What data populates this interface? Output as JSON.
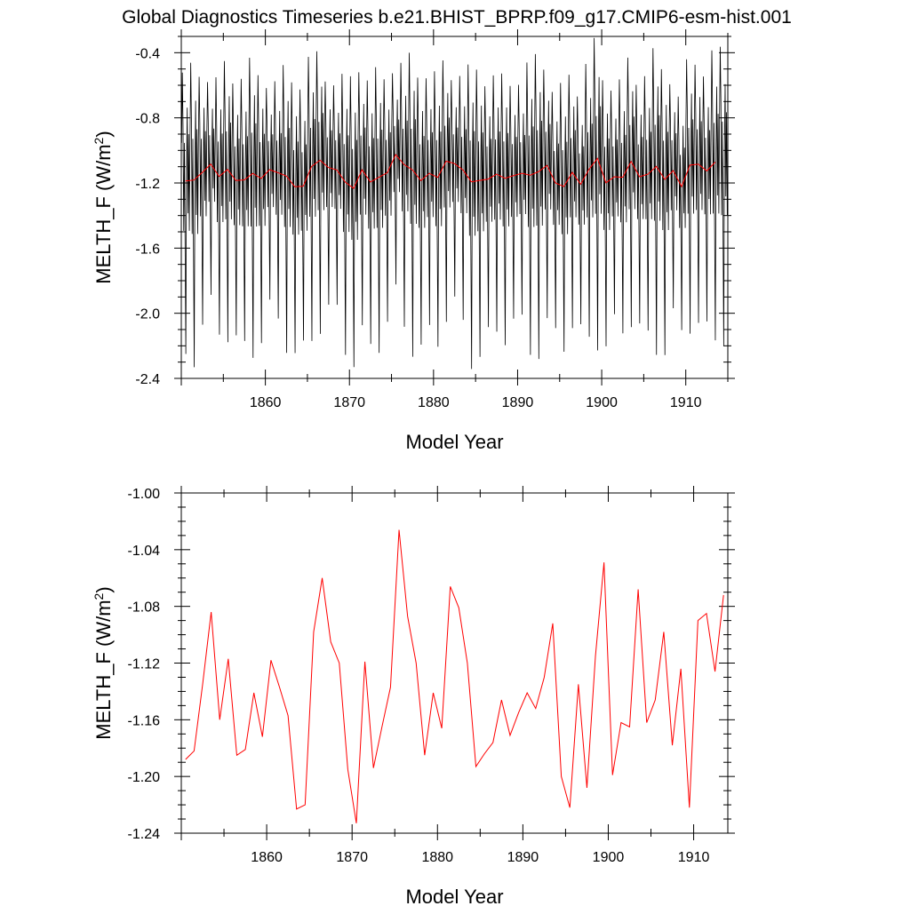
{
  "title": "Global Diagnostics Timeseries b.e21.BHIST_BPRP.f09_g17.CMIP6-esm-hist.001",
  "colors": {
    "monthly": "#000000",
    "annual": "#ff0000"
  },
  "chart_data": [
    {
      "type": "line",
      "panel": "top",
      "xlabel": "Model Year",
      "ylabel": "MELTH_F (W/m",
      "ylabel_sup": "2",
      "ylabel_close": ")",
      "xlim": [
        1850,
        1915
      ],
      "ylim": [
        -2.4,
        -0.3
      ],
      "xticks": [
        1860,
        1870,
        1880,
        1890,
        1900,
        1910
      ],
      "xtick_labels": [
        "1860",
        "1870",
        "1880",
        "1890",
        "1900",
        "1910"
      ],
      "yticks": [
        -2.4,
        -2.0,
        -1.6,
        -1.2,
        -0.8,
        -0.4
      ],
      "ytick_labels": [
        "-2.4",
        "-2.0",
        "-1.6",
        "-1.2",
        "-0.8",
        "-0.4"
      ],
      "grid": false,
      "series": [
        {
          "kind": "monthly",
          "color": "#000000",
          "seasonal_cycle": [
            -0.95,
            -0.55,
            -0.85,
            -1.45,
            -0.95,
            -1.55,
            -2.15,
            -1.1,
            -0.75,
            -1.35,
            -0.9,
            -1.45
          ],
          "x_start": 1850.04,
          "x_step": 0.0833
        },
        {
          "kind": "annual",
          "color": "#ff0000",
          "x": [
            1850.5,
            1851.5,
            1852.5,
            1853.5,
            1854.5,
            1855.5,
            1856.5,
            1857.5,
            1858.5,
            1859.5,
            1860.5,
            1861.5,
            1862.5,
            1863.5,
            1864.5,
            1865.5,
            1866.5,
            1867.5,
            1868.5,
            1869.5,
            1870.5,
            1871.5,
            1872.5,
            1873.5,
            1874.5,
            1875.5,
            1876.5,
            1877.5,
            1878.5,
            1879.5,
            1880.5,
            1881.5,
            1882.5,
            1883.5,
            1884.5,
            1885.5,
            1886.5,
            1887.5,
            1888.5,
            1889.5,
            1890.5,
            1891.5,
            1892.5,
            1893.5,
            1894.5,
            1895.5,
            1896.5,
            1897.5,
            1898.5,
            1899.5,
            1900.5,
            1901.5,
            1902.5,
            1903.5,
            1904.5,
            1905.5,
            1906.5,
            1907.5,
            1908.5,
            1909.5,
            1910.5,
            1911.5,
            1912.5,
            1913.5
          ],
          "values": [
            -1.188,
            -1.182,
            -1.135,
            -1.084,
            -1.16,
            -1.117,
            -1.185,
            -1.181,
            -1.141,
            -1.172,
            -1.118,
            -1.137,
            -1.157,
            -1.223,
            -1.22,
            -1.098,
            -1.06,
            -1.105,
            -1.12,
            -1.195,
            -1.233,
            -1.119,
            -1.194,
            -1.165,
            -1.137,
            -1.026,
            -1.087,
            -1.12,
            -1.185,
            -1.141,
            -1.166,
            -1.066,
            -1.081,
            -1.12,
            -1.193,
            -1.184,
            -1.176,
            -1.146,
            -1.171,
            -1.155,
            -1.141,
            -1.152,
            -1.13,
            -1.092,
            -1.2,
            -1.222,
            -1.135,
            -1.208,
            -1.115,
            -1.049,
            -1.199,
            -1.162,
            -1.165,
            -1.068,
            -1.162,
            -1.146,
            -1.098,
            -1.178,
            -1.124,
            -1.222,
            -1.09,
            -1.085,
            -1.126,
            -1.072
          ]
        }
      ]
    },
    {
      "type": "line",
      "panel": "bottom",
      "xlabel": "Model Year",
      "ylabel": "MELTH_F (W/m",
      "ylabel_sup": "2",
      "ylabel_close": ")",
      "xlim": [
        1850,
        1914
      ],
      "ylim": [
        -1.24,
        -1.0
      ],
      "xticks": [
        1860,
        1870,
        1880,
        1890,
        1900,
        1910
      ],
      "xtick_labels": [
        "1860",
        "1870",
        "1880",
        "1890",
        "1900",
        "1910"
      ],
      "yticks": [
        -1.24,
        -1.2,
        -1.16,
        -1.12,
        -1.08,
        -1.04,
        -1.0
      ],
      "ytick_labels": [
        "-1.24",
        "-1.20",
        "-1.16",
        "-1.12",
        "-1.08",
        "-1.04",
        "-1.00"
      ],
      "grid": false,
      "series": [
        {
          "kind": "annual",
          "color": "#ff0000",
          "x": [
            1850.5,
            1851.5,
            1852.5,
            1853.5,
            1854.5,
            1855.5,
            1856.5,
            1857.5,
            1858.5,
            1859.5,
            1860.5,
            1861.5,
            1862.5,
            1863.5,
            1864.5,
            1865.5,
            1866.5,
            1867.5,
            1868.5,
            1869.5,
            1870.5,
            1871.5,
            1872.5,
            1873.5,
            1874.5,
            1875.5,
            1876.5,
            1877.5,
            1878.5,
            1879.5,
            1880.5,
            1881.5,
            1882.5,
            1883.5,
            1884.5,
            1885.5,
            1886.5,
            1887.5,
            1888.5,
            1889.5,
            1890.5,
            1891.5,
            1892.5,
            1893.5,
            1894.5,
            1895.5,
            1896.5,
            1897.5,
            1898.5,
            1899.5,
            1900.5,
            1901.5,
            1902.5,
            1903.5,
            1904.5,
            1905.5,
            1906.5,
            1907.5,
            1908.5,
            1909.5,
            1910.5,
            1911.5,
            1912.5,
            1913.5
          ],
          "values": [
            -1.188,
            -1.182,
            -1.135,
            -1.084,
            -1.16,
            -1.117,
            -1.185,
            -1.181,
            -1.141,
            -1.172,
            -1.118,
            -1.137,
            -1.157,
            -1.223,
            -1.22,
            -1.098,
            -1.06,
            -1.105,
            -1.12,
            -1.195,
            -1.233,
            -1.119,
            -1.194,
            -1.165,
            -1.137,
            -1.026,
            -1.087,
            -1.12,
            -1.185,
            -1.141,
            -1.166,
            -1.066,
            -1.081,
            -1.12,
            -1.193,
            -1.184,
            -1.176,
            -1.146,
            -1.171,
            -1.155,
            -1.141,
            -1.152,
            -1.13,
            -1.092,
            -1.2,
            -1.222,
            -1.135,
            -1.208,
            -1.115,
            -1.049,
            -1.199,
            -1.162,
            -1.165,
            -1.068,
            -1.162,
            -1.146,
            -1.098,
            -1.178,
            -1.124,
            -1.222,
            -1.09,
            -1.085,
            -1.126,
            -1.072
          ]
        }
      ]
    }
  ]
}
